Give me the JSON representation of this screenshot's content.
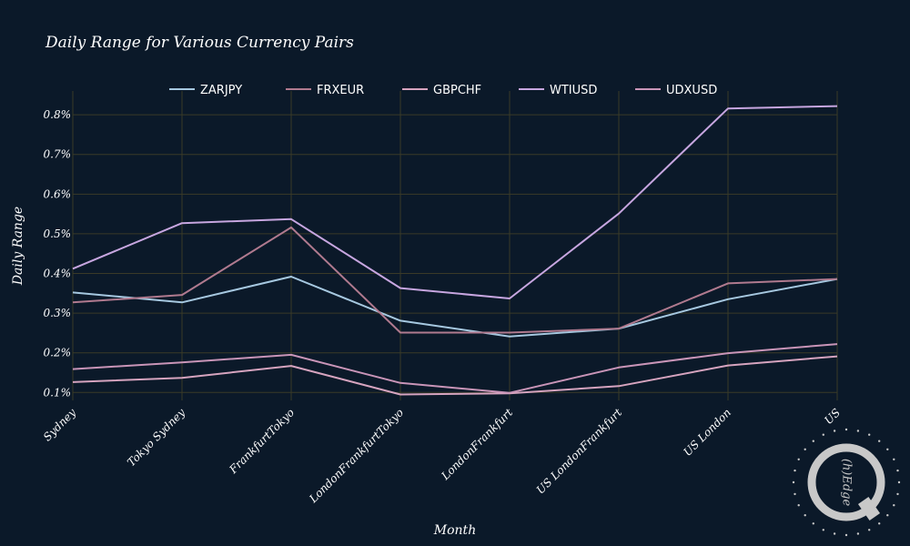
{
  "chart_data": {
    "type": "line",
    "title": "Daily Range for Various Currency Pairs",
    "xlabel": "Month",
    "ylabel": "Daily Range",
    "categories": [
      "Sydney",
      "Tokyo Sydney",
      "FrankfurtTokyo",
      "LondonFrankfurtTokyo",
      "LondonFrankfurt",
      "US LondonFrankfurt",
      "US London",
      "US"
    ],
    "ylim": [
      0.08,
      0.86
    ],
    "yticks": [
      0.1,
      0.2,
      0.3,
      0.4,
      0.5,
      0.6,
      0.7,
      0.8
    ],
    "ytick_labels": [
      "0.1%",
      "0.2%",
      "0.3%",
      "0.4%",
      "0.5%",
      "0.6%",
      "0.7%",
      "0.8%"
    ],
    "grid": true,
    "legend_position": "top-center",
    "background_color": "#0b1929",
    "grid_color": "#3a3a28",
    "series": [
      {
        "name": "ZARJPY",
        "color": "#a6c8e0",
        "values": [
          0.352,
          0.327,
          0.392,
          0.281,
          0.241,
          0.261,
          0.335,
          0.386
        ]
      },
      {
        "name": "FRXEUR",
        "color": "#b07a8f",
        "values": [
          0.327,
          0.346,
          0.516,
          0.251,
          0.251,
          0.261,
          0.375,
          0.386
        ]
      },
      {
        "name": "GBPCHF",
        "color": "#d6a4bf",
        "values": [
          0.126,
          0.137,
          0.167,
          0.095,
          0.098,
          0.116,
          0.168,
          0.191
        ]
      },
      {
        "name": "WTIUSD",
        "color": "#c7a6e0",
        "values": [
          0.412,
          0.527,
          0.537,
          0.363,
          0.337,
          0.551,
          0.816,
          0.822
        ]
      },
      {
        "name": "UDXUSD",
        "color": "#c995b8",
        "values": [
          0.159,
          0.176,
          0.195,
          0.124,
          0.099,
          0.163,
          0.199,
          0.222
        ]
      }
    ]
  },
  "watermark": {
    "text": "(h)Edge",
    "letter": "Q",
    "color": "#c8c8c8"
  }
}
